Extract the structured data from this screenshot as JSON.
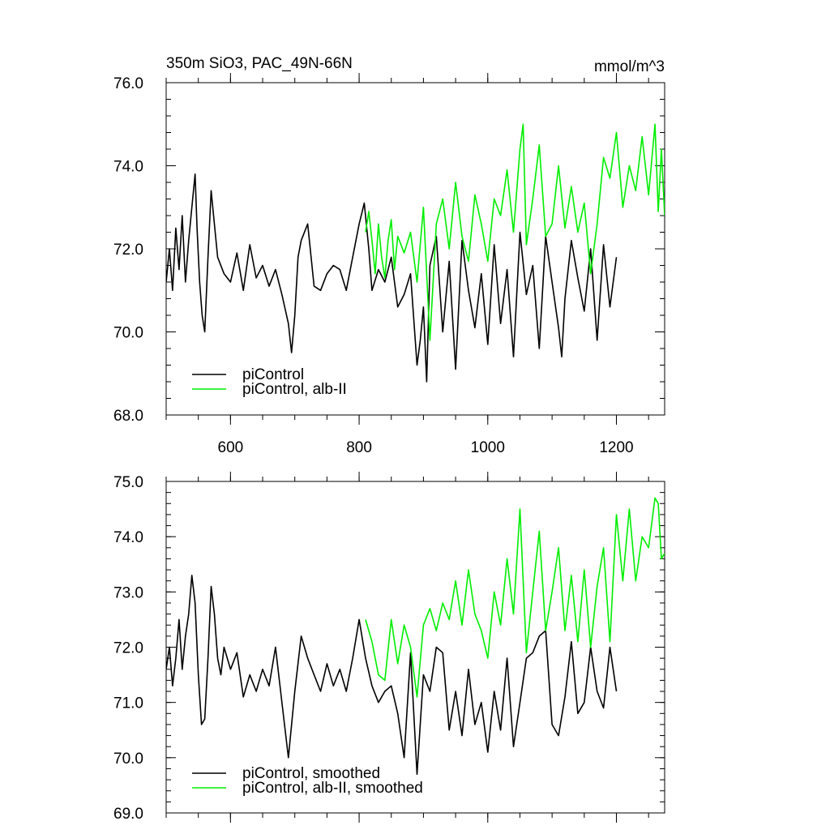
{
  "chart_data": [
    {
      "type": "line",
      "title": "350m SiO3, PAC_49N-66N",
      "units_label": "mmol/m^3",
      "xlim": [
        500,
        1275
      ],
      "ylim": [
        68,
        76
      ],
      "x_ticks": [
        600,
        800,
        1000,
        1200
      ],
      "x_tick_labels": [
        "600",
        "800",
        "1000",
        "1200"
      ],
      "y_ticks": [
        68,
        70,
        72,
        74,
        76
      ],
      "y_tick_labels": [
        "68.0",
        "70.0",
        "72.0",
        "74.0",
        "76.0"
      ],
      "grid": false,
      "legend_position": "bottom-left",
      "series": [
        {
          "name": "piControl",
          "color": "#000000",
          "x": [
            500,
            505,
            510,
            515,
            520,
            525,
            530,
            535,
            540,
            545,
            548,
            552,
            556,
            560,
            565,
            570,
            575,
            580,
            590,
            600,
            610,
            620,
            630,
            640,
            650,
            660,
            670,
            680,
            690,
            695,
            700,
            705,
            710,
            720,
            730,
            740,
            750,
            760,
            770,
            780,
            790,
            800,
            808,
            815,
            820,
            830,
            840,
            850,
            860,
            870,
            880,
            890,
            895,
            900,
            905,
            910,
            920,
            930,
            940,
            950,
            960,
            970,
            980,
            990,
            1000,
            1010,
            1020,
            1030,
            1040,
            1050,
            1060,
            1070,
            1080,
            1090,
            1100,
            1110,
            1115,
            1120,
            1130,
            1140,
            1150,
            1160,
            1170,
            1180,
            1190,
            1200
          ],
          "values": [
            71.2,
            72.0,
            71.0,
            72.5,
            71.5,
            72.8,
            71.2,
            72.2,
            73.0,
            73.8,
            72.5,
            71.2,
            70.4,
            70.0,
            71.8,
            73.4,
            72.6,
            71.8,
            71.4,
            71.2,
            71.9,
            71.0,
            72.1,
            71.3,
            71.6,
            71.1,
            71.5,
            70.9,
            70.2,
            69.5,
            70.4,
            71.8,
            72.2,
            72.6,
            71.1,
            71.0,
            71.4,
            71.6,
            71.5,
            71.0,
            71.8,
            72.6,
            73.1,
            72.0,
            71.0,
            71.5,
            71.2,
            71.8,
            70.6,
            70.9,
            71.4,
            69.2,
            69.8,
            70.6,
            68.8,
            71.6,
            72.3,
            70.0,
            71.7,
            69.1,
            72.2,
            71.0,
            70.1,
            71.4,
            69.7,
            72.1,
            70.2,
            71.5,
            69.4,
            72.4,
            70.9,
            71.6,
            69.6,
            72.3,
            71.2,
            70.1,
            69.4,
            70.8,
            72.2,
            71.3,
            70.5,
            72.0,
            69.8,
            72.1,
            70.6,
            71.8
          ]
        },
        {
          "name": "piControl, alb-II",
          "color": "#00ee00",
          "x": [
            810,
            815,
            820,
            825,
            830,
            835,
            840,
            845,
            850,
            855,
            860,
            870,
            880,
            890,
            900,
            910,
            920,
            930,
            940,
            950,
            960,
            970,
            980,
            990,
            1000,
            1010,
            1020,
            1030,
            1040,
            1050,
            1055,
            1060,
            1070,
            1080,
            1090,
            1100,
            1110,
            1120,
            1130,
            1140,
            1150,
            1160,
            1170,
            1180,
            1190,
            1200,
            1210,
            1220,
            1230,
            1240,
            1250,
            1260,
            1265,
            1270,
            1275
          ],
          "values": [
            72.4,
            72.9,
            72.2,
            71.4,
            72.6,
            71.8,
            71.3,
            72.2,
            72.7,
            71.5,
            72.3,
            71.9,
            72.4,
            71.2,
            73.0,
            69.8,
            72.6,
            73.2,
            72.0,
            73.6,
            72.3,
            71.7,
            73.3,
            72.6,
            71.7,
            73.2,
            72.8,
            73.9,
            72.4,
            74.4,
            75.0,
            72.1,
            73.2,
            74.5,
            72.3,
            72.6,
            74.0,
            72.5,
            73.5,
            72.4,
            73.1,
            71.4,
            72.6,
            74.2,
            73.7,
            74.8,
            73.0,
            74.0,
            73.4,
            74.7,
            73.3,
            75.0,
            72.9,
            74.4,
            72.8
          ]
        }
      ]
    },
    {
      "type": "line",
      "xlim": [
        500,
        1275
      ],
      "ylim": [
        69,
        75
      ],
      "x_ticks": [
        600,
        800,
        1000,
        1200
      ],
      "x_tick_labels": [],
      "y_ticks": [
        69,
        70,
        71,
        72,
        73,
        74,
        75
      ],
      "y_tick_labels": [
        "69.0",
        "70.0",
        "71.0",
        "72.0",
        "73.0",
        "74.0",
        "75.0"
      ],
      "grid": false,
      "legend_position": "bottom-left",
      "series": [
        {
          "name": "piControl, smoothed",
          "color": "#000000",
          "x": [
            500,
            505,
            510,
            515,
            520,
            525,
            530,
            535,
            540,
            545,
            550,
            555,
            560,
            565,
            570,
            575,
            580,
            585,
            590,
            600,
            610,
            620,
            630,
            640,
            650,
            660,
            670,
            680,
            690,
            700,
            710,
            720,
            730,
            740,
            750,
            760,
            770,
            780,
            790,
            800,
            810,
            820,
            830,
            840,
            850,
            860,
            870,
            880,
            890,
            900,
            910,
            920,
            930,
            940,
            950,
            960,
            970,
            980,
            990,
            1000,
            1010,
            1020,
            1030,
            1040,
            1050,
            1060,
            1070,
            1080,
            1090,
            1100,
            1110,
            1120,
            1130,
            1140,
            1150,
            1160,
            1170,
            1180,
            1190,
            1200
          ],
          "values": [
            71.6,
            72.0,
            71.3,
            71.8,
            72.5,
            71.6,
            72.2,
            72.6,
            73.3,
            72.8,
            71.5,
            70.6,
            70.7,
            71.8,
            73.1,
            72.6,
            71.8,
            71.5,
            72.0,
            71.6,
            71.9,
            71.1,
            71.5,
            71.2,
            71.6,
            71.3,
            72.0,
            71.0,
            70.0,
            71.2,
            72.2,
            71.8,
            71.5,
            71.2,
            71.7,
            71.3,
            71.6,
            71.2,
            71.8,
            72.5,
            71.8,
            71.3,
            71.0,
            71.2,
            71.3,
            70.8,
            70.0,
            71.9,
            69.7,
            71.5,
            71.2,
            72.0,
            71.9,
            70.5,
            71.2,
            70.4,
            71.6,
            70.6,
            71.0,
            70.1,
            71.2,
            70.5,
            71.8,
            70.2,
            71.0,
            71.8,
            71.9,
            72.2,
            72.3,
            70.6,
            70.4,
            71.1,
            72.1,
            70.8,
            71.0,
            72.0,
            71.2,
            70.9,
            72.0,
            71.2
          ]
        },
        {
          "name": "piControl, alb-II, smoothed",
          "color": "#00ee00",
          "x": [
            810,
            820,
            830,
            840,
            850,
            860,
            870,
            880,
            890,
            900,
            910,
            920,
            930,
            940,
            950,
            960,
            970,
            980,
            990,
            1000,
            1010,
            1020,
            1030,
            1040,
            1050,
            1060,
            1070,
            1080,
            1090,
            1100,
            1110,
            1120,
            1130,
            1140,
            1150,
            1160,
            1170,
            1180,
            1190,
            1200,
            1210,
            1220,
            1230,
            1240,
            1250,
            1260,
            1265,
            1270,
            1275
          ],
          "values": [
            72.5,
            72.1,
            71.5,
            71.4,
            72.5,
            71.7,
            72.4,
            72.0,
            71.1,
            72.4,
            72.7,
            72.3,
            72.8,
            72.5,
            73.2,
            72.4,
            73.4,
            72.6,
            72.3,
            71.8,
            73.0,
            72.4,
            73.6,
            72.6,
            74.5,
            71.9,
            73.0,
            74.1,
            72.3,
            73.0,
            73.8,
            72.3,
            73.3,
            72.1,
            73.4,
            72.0,
            73.1,
            73.8,
            72.1,
            74.4,
            73.2,
            74.5,
            73.2,
            74.0,
            73.8,
            74.7,
            74.6,
            73.6,
            73.7
          ]
        }
      ]
    }
  ]
}
